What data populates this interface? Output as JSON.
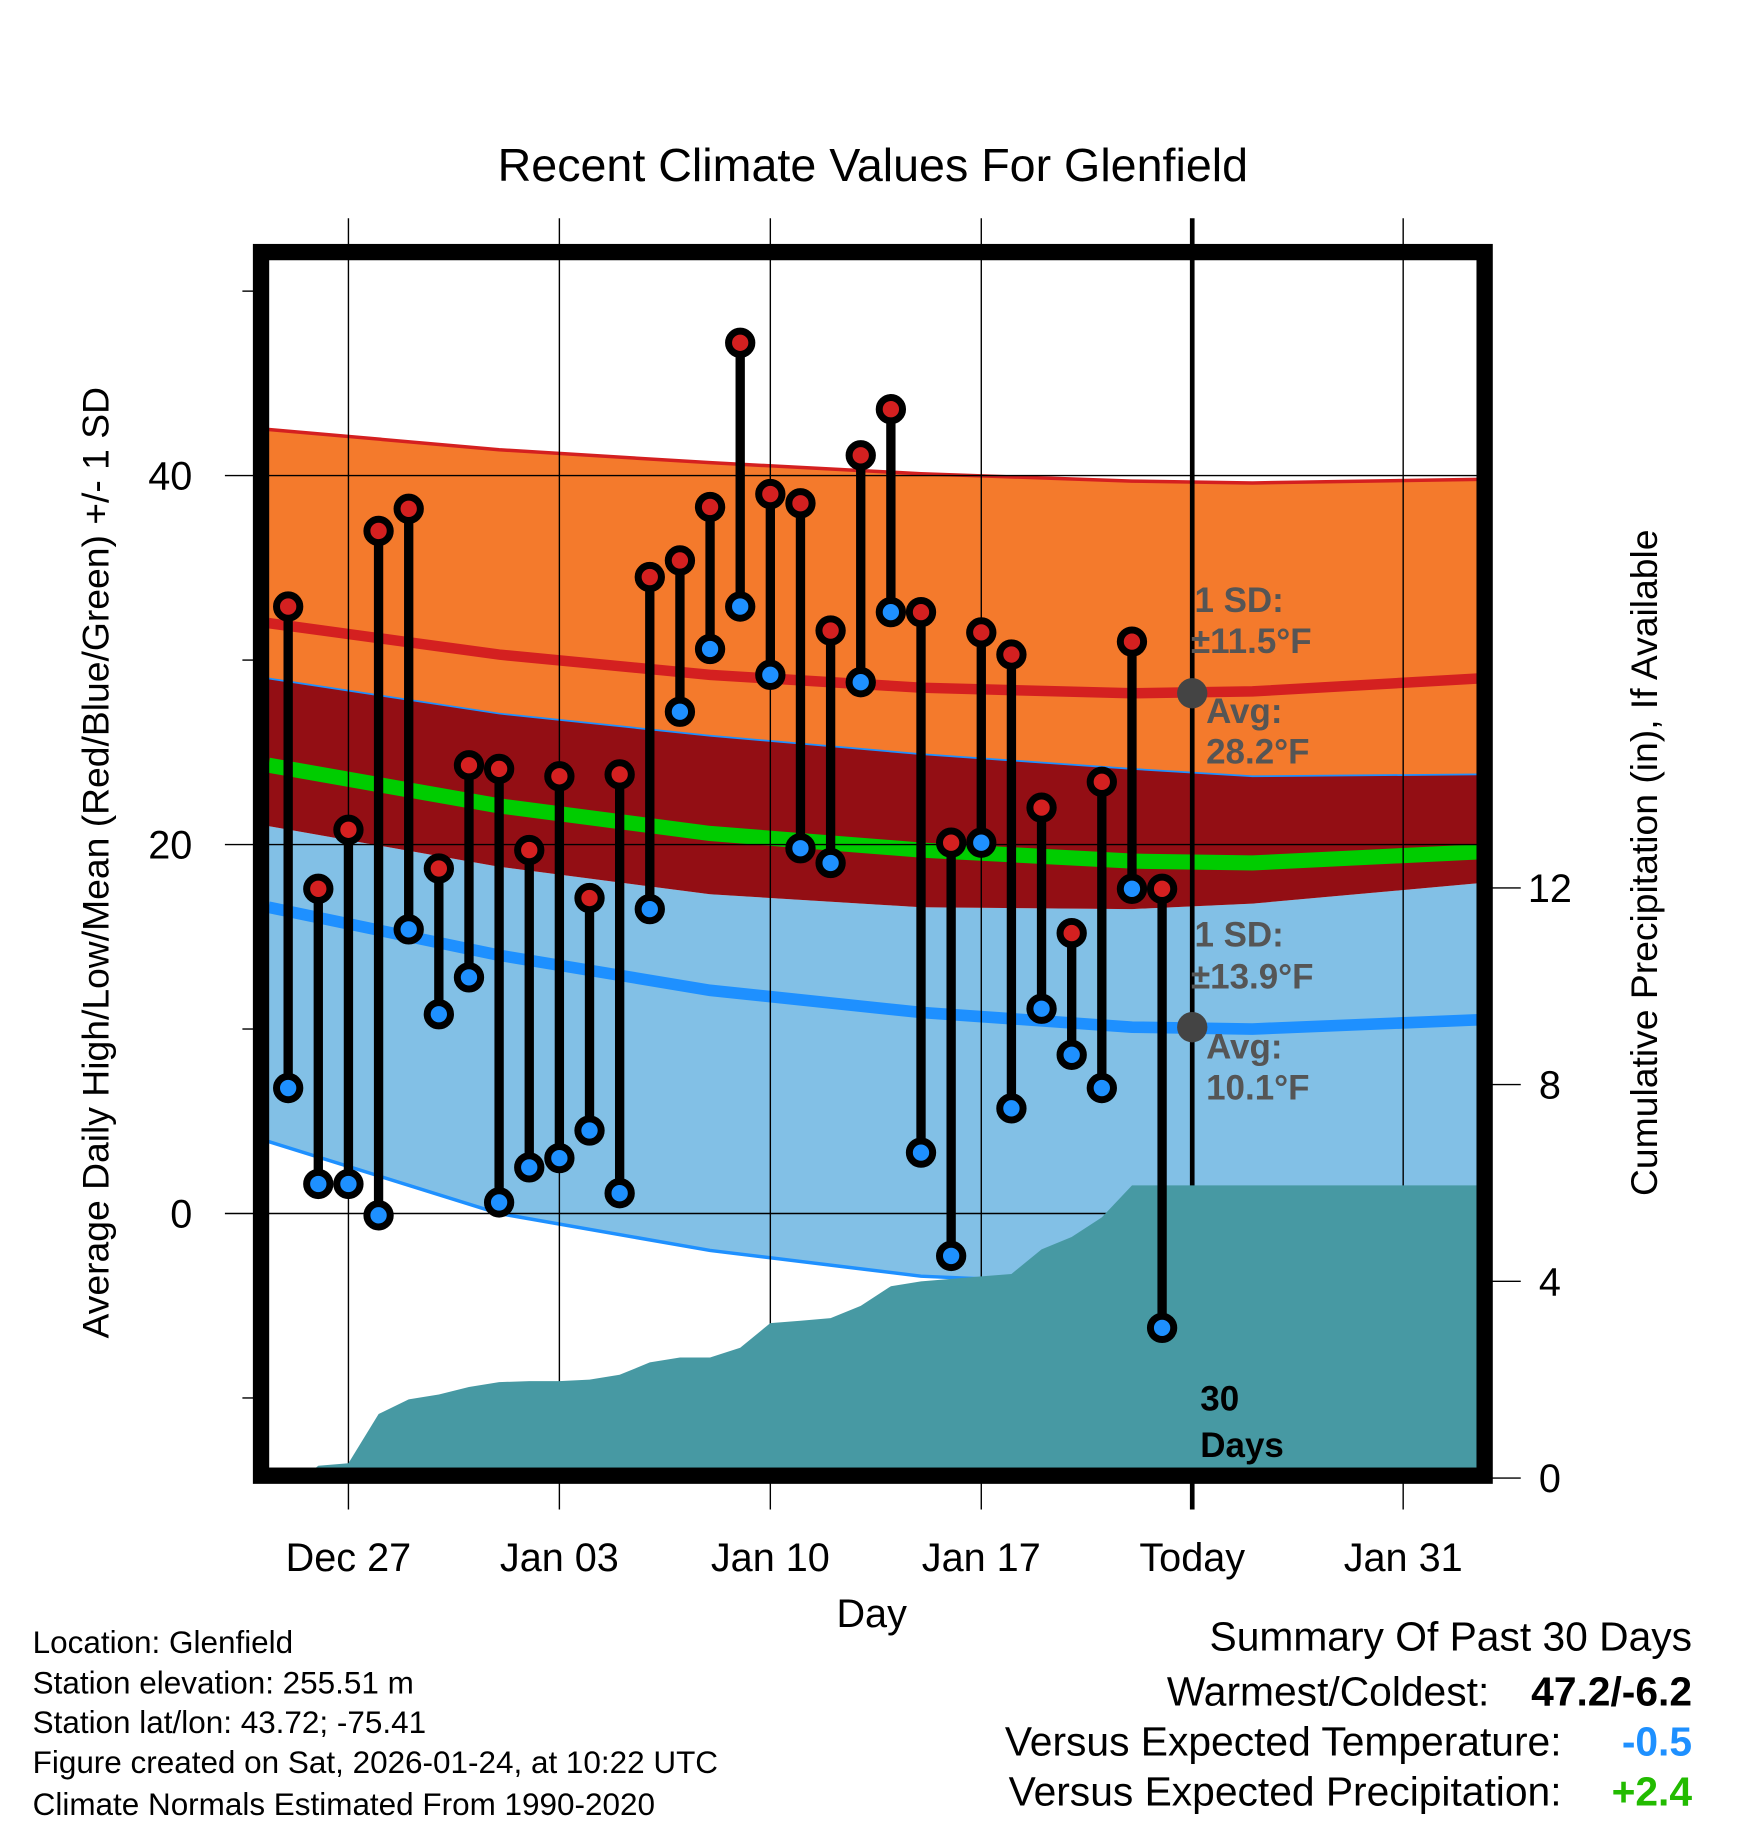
{
  "chart_data": {
    "type": "line",
    "title": "Recent Climate Values For Glenfield",
    "xlabel": "Day",
    "ylabel": "Average Daily High/Low/Mean (Red/Blue/Green) +/- 1 SD",
    "y2label": "Cumulative Precipitation (in), If Available",
    "x_unit": "days relative to Dec 27",
    "xlim": [
      -2.65,
      37.5
    ],
    "ylim": [
      -13.8,
      51.7
    ],
    "y2lim": [
      0,
      24.8
    ],
    "x_ticks": [
      {
        "day": 0,
        "label": "Dec 27"
      },
      {
        "day": 7,
        "label": "Jan 03"
      },
      {
        "day": 14,
        "label": "Jan 10"
      },
      {
        "day": 21,
        "label": "Jan 17"
      },
      {
        "day": 28,
        "label": "Today"
      },
      {
        "day": 35,
        "label": "Jan 31"
      }
    ],
    "y_ticks": [
      {
        "v": 40,
        "label": "40"
      },
      {
        "v": 20,
        "label": "20"
      },
      {
        "v": 0,
        "label": "0"
      }
    ],
    "y_minor_ticks": [
      50,
      30,
      10,
      -10
    ],
    "y2_ticks": [
      {
        "v": 0,
        "label": "0"
      },
      {
        "v": 4,
        "label": "4"
      },
      {
        "v": 8,
        "label": "8"
      },
      {
        "v": 12,
        "label": "12"
      }
    ],
    "first_day": -2,
    "daily_high": [
      32.9,
      17.6,
      20.8,
      37.0,
      38.2,
      18.7,
      24.3,
      24.1,
      19.7,
      23.7,
      17.1,
      23.8,
      34.5,
      35.4,
      38.3,
      47.2,
      39.0,
      38.5,
      31.6,
      41.1,
      43.6,
      32.6,
      20.1,
      31.5,
      30.3,
      22.0,
      15.2,
      23.4,
      31.0,
      17.6
    ],
    "daily_low": [
      6.8,
      1.6,
      1.6,
      -0.1,
      15.4,
      10.8,
      12.8,
      0.6,
      2.5,
      3.0,
      4.5,
      1.1,
      16.5,
      27.2,
      30.6,
      32.9,
      29.2,
      19.8,
      19.0,
      28.8,
      32.6,
      3.3,
      -2.3,
      20.1,
      5.7,
      11.1,
      8.6,
      6.8,
      17.6,
      -6.2
    ],
    "cumulative_precip": [
      0,
      0.25,
      0.3,
      1.3,
      1.6,
      1.7,
      1.85,
      1.95,
      1.97,
      1.97,
      2.0,
      2.1,
      2.35,
      2.45,
      2.45,
      2.65,
      3.15,
      3.2,
      3.25,
      3.5,
      3.9,
      4.0,
      4.05,
      4.1,
      4.15,
      4.65,
      4.9,
      5.3,
      5.95,
      5.95
    ],
    "normals": {
      "high_plus_sd": [
        [
          -2.65,
          42.5
        ],
        [
          5,
          41.4
        ],
        [
          12,
          40.7
        ],
        [
          19,
          40.1
        ],
        [
          26,
          39.7
        ],
        [
          30,
          39.6
        ],
        [
          37.5,
          39.8
        ]
      ],
      "normal_high": [
        [
          -2.65,
          32.0
        ],
        [
          5,
          30.3
        ],
        [
          12,
          29.2
        ],
        [
          19,
          28.5
        ],
        [
          26,
          28.2
        ],
        [
          30,
          28.3
        ],
        [
          37.5,
          29.0
        ]
      ],
      "high_minus_sd": [
        [
          -2.65,
          29.0
        ],
        [
          5,
          27.1
        ],
        [
          12,
          25.9
        ],
        [
          19,
          24.9
        ],
        [
          26,
          24.1
        ],
        [
          30,
          23.7
        ],
        [
          37.5,
          23.8
        ]
      ],
      "normal_mean": [
        [
          -2.65,
          24.3
        ],
        [
          5,
          22.1
        ],
        [
          12,
          20.6
        ],
        [
          19,
          19.7
        ],
        [
          26,
          19.1
        ],
        [
          30,
          19.0
        ],
        [
          37.5,
          19.6
        ]
      ],
      "low_plus_sd": [
        [
          -2.65,
          21.0
        ],
        [
          5,
          18.8
        ],
        [
          12,
          17.3
        ],
        [
          19,
          16.6
        ],
        [
          26,
          16.5
        ],
        [
          30,
          16.8
        ],
        [
          37.5,
          17.9
        ]
      ],
      "normal_low": [
        [
          -2.65,
          16.6
        ],
        [
          5,
          14.0
        ],
        [
          12,
          12.1
        ],
        [
          19,
          10.9
        ],
        [
          26,
          10.1
        ],
        [
          30,
          10.0
        ],
        [
          37.5,
          10.5
        ]
      ],
      "low_minus_sd": [
        [
          -2.65,
          3.9
        ],
        [
          5,
          0.0
        ],
        [
          12,
          -2.0
        ],
        [
          19,
          -3.4
        ],
        [
          26,
          -3.9
        ],
        [
          30,
          -3.9
        ],
        [
          37.5,
          -3.3
        ]
      ]
    },
    "annotations": {
      "high_sd_label": "1 SD:",
      "high_sd_value": "±11.5°F",
      "high_avg_label": "Avg:",
      "high_avg_value": "28.2°F",
      "high_avg": 28.2,
      "low_sd_label": "1 SD:",
      "low_sd_value": "±13.9°F",
      "low_avg_label": "Avg:",
      "low_avg_value": "10.1°F",
      "low_avg": 10.1,
      "days_count": "30",
      "days_word": "Days"
    },
    "colors": {
      "orange_band": "#f47a2c",
      "overlap_band": "#930e14",
      "blue_band": "#82c0e6",
      "high_line": "#d42020",
      "low_line": "#1e90ff",
      "mean_line": "#00cc00",
      "precip": "#4799a3",
      "high_dot": "#d42020",
      "low_dot": "#1e90ff",
      "marker": "#444444"
    }
  },
  "footer": {
    "location": "Location: Glenfield",
    "elevation": "Station elevation: 255.51 m",
    "latlon": "Station lat/lon: 43.72; -75.41",
    "created": "Figure created on Sat, 2026-01-24, at 10:22 UTC",
    "normals": "Climate Normals Estimated From 1990-2020"
  },
  "summary": {
    "title": "Summary Of Past 30 Days",
    "warmest_label": "Warmest/Coldest:",
    "warmest_value": "47.2/-6.2",
    "temp_label": "Versus Expected Temperature:",
    "temp_value": "-0.5",
    "temp_color": "#1e90ff",
    "precip_label": "Versus Expected Precipitation:",
    "precip_value": "+2.4",
    "precip_color": "#22bb00"
  }
}
